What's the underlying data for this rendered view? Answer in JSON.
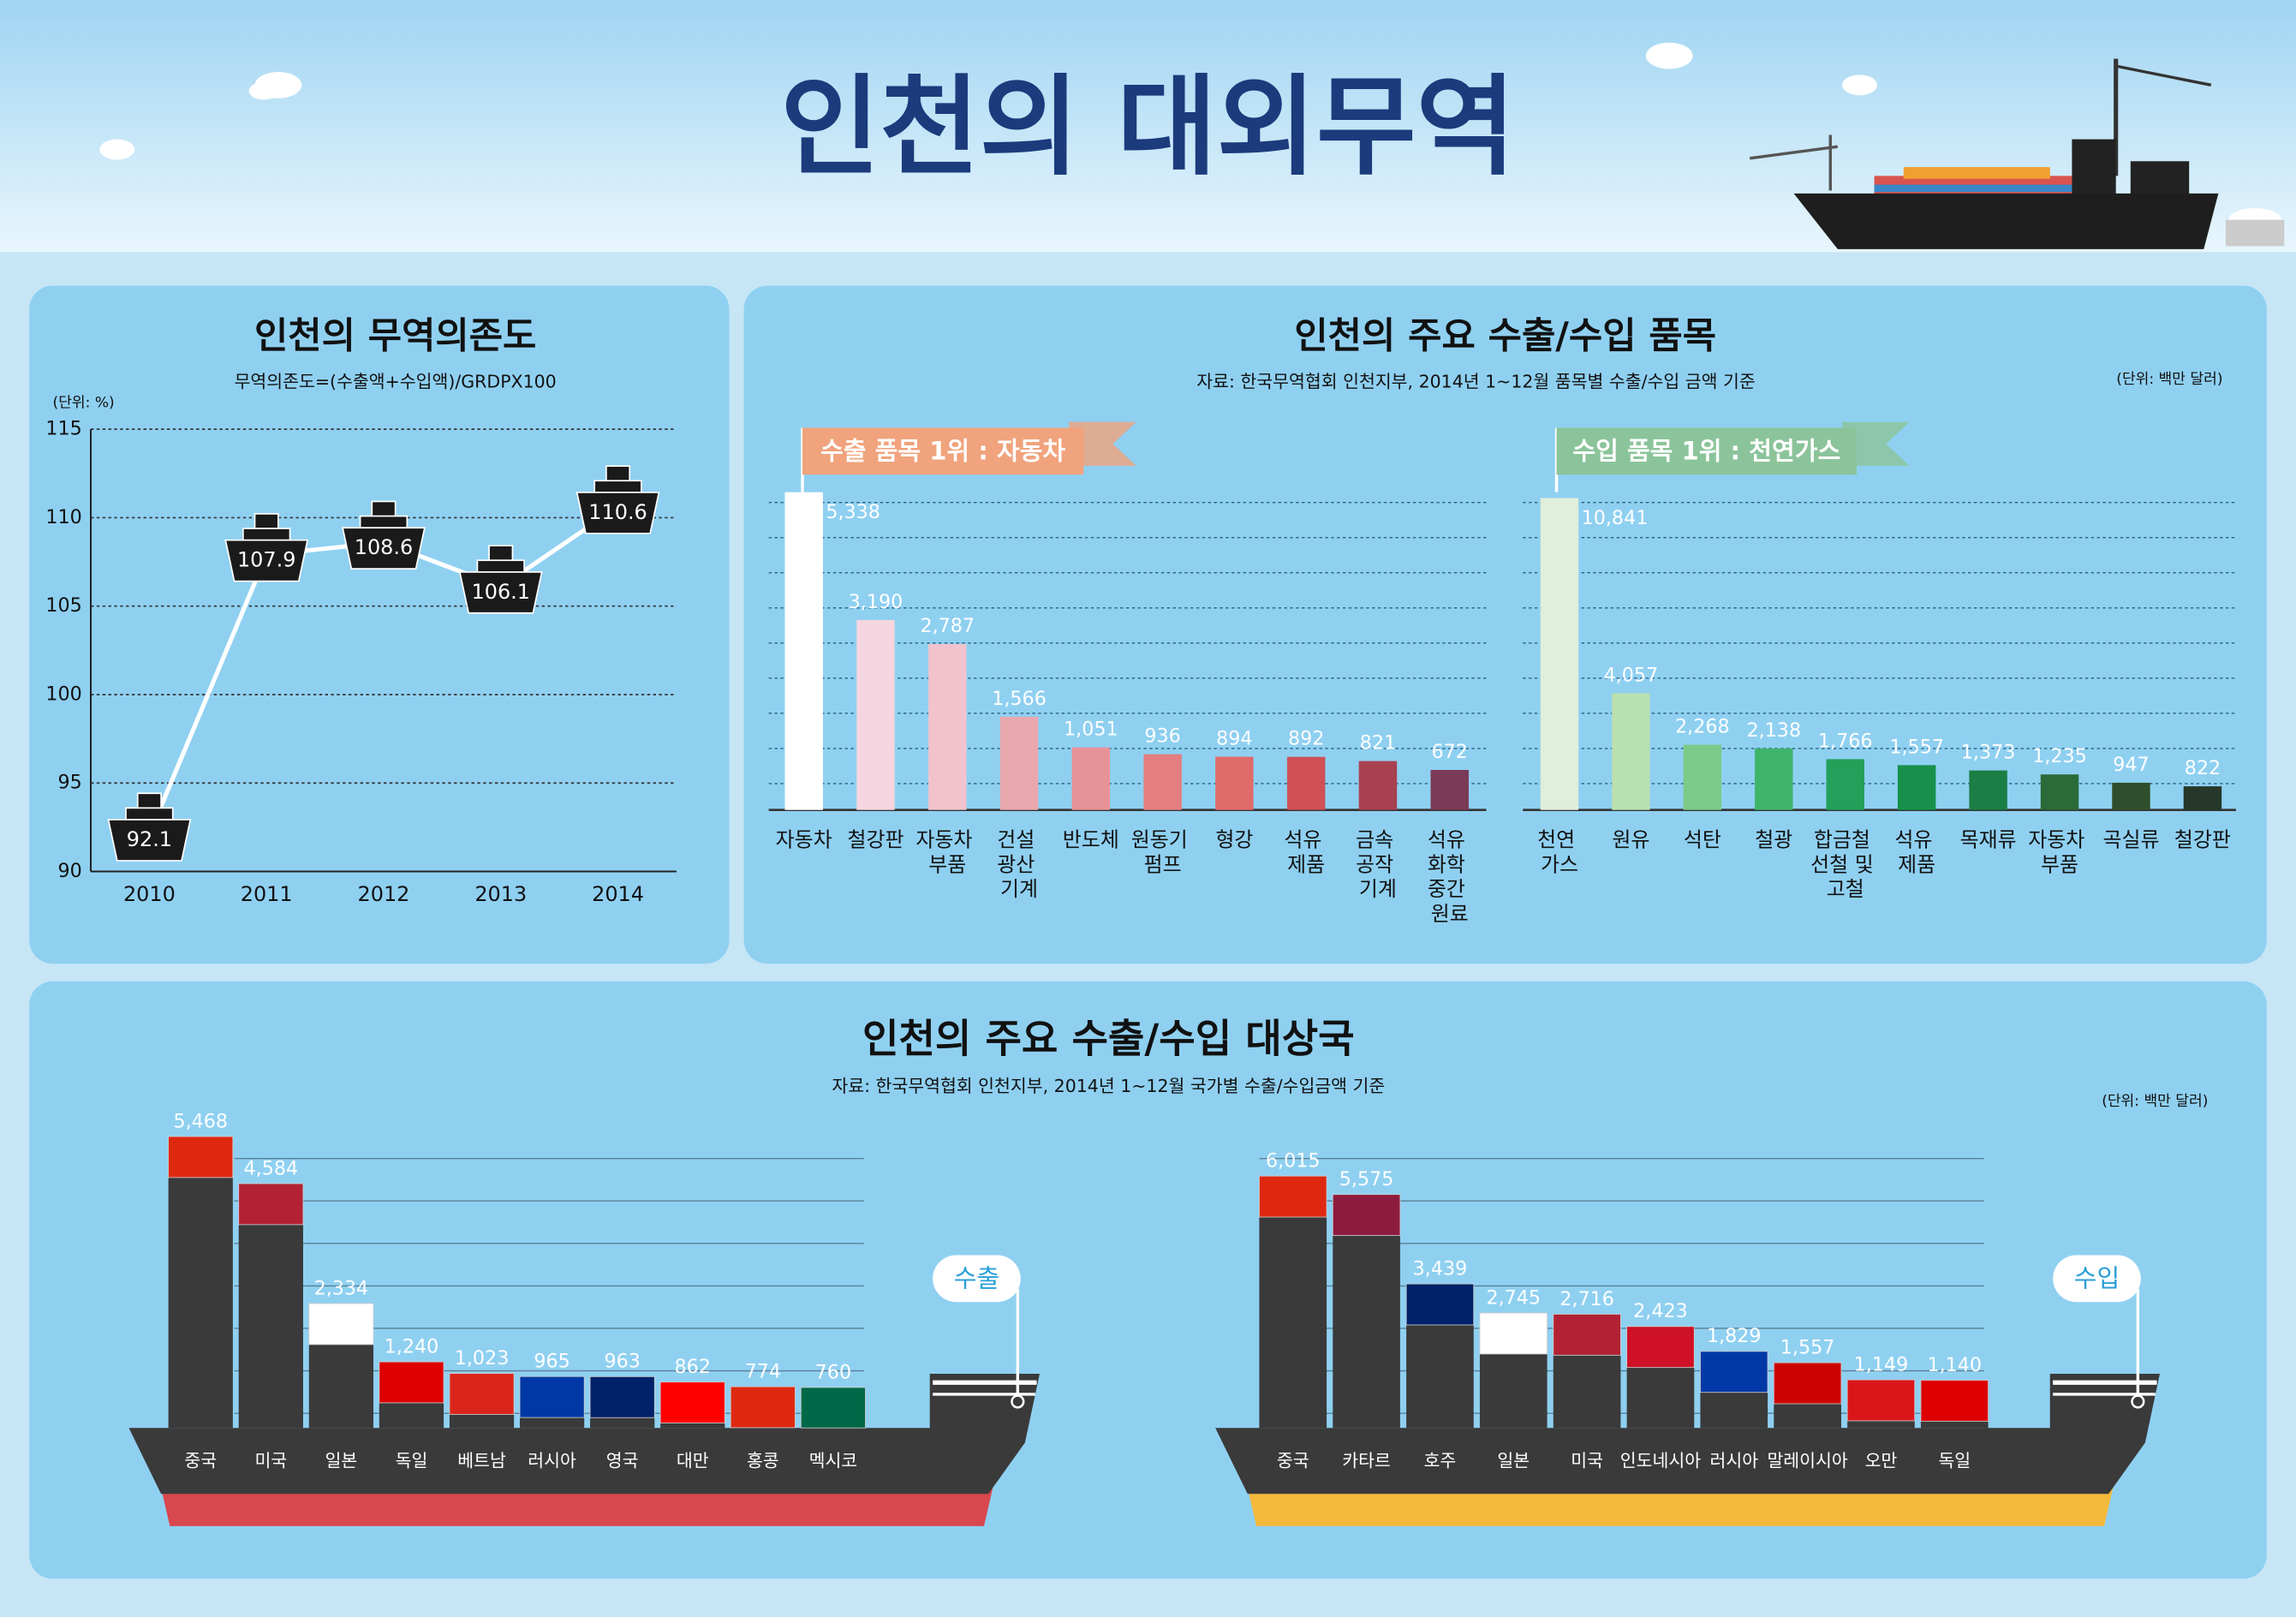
{
  "title": "인천의 대외무역",
  "chart_data": [
    {
      "type": "line",
      "title": "인천의 무역의존도",
      "subtitle": "무역의존도=(수출액+수입액)/GRDPX100",
      "unit": "(단위: %)",
      "categories": [
        "2010",
        "2011",
        "2012",
        "2013",
        "2014"
      ],
      "values": [
        92.1,
        107.9,
        108.6,
        106.1,
        110.6
      ],
      "ylim": [
        90,
        115
      ],
      "yticks": [
        90,
        95,
        100,
        105,
        110,
        115
      ],
      "grid": true,
      "color": "#ffffff"
    },
    {
      "type": "bar",
      "title": "인천의 주요 수출/수입 품목",
      "source": "자료: 한국무역협회 인천지부, 2014년 1~12월 품목별 수출/수입 금액 기준",
      "unit": "(단위: 백만 달러)",
      "banner": "수출 품목 1위 : 자동차",
      "banner_color": "#f0a37c",
      "categories": [
        "자동차",
        "철강판",
        "자동차\n부품",
        "건설\n광산\n기계",
        "반도체",
        "원동기\n펌프",
        "형강",
        "석유\n제품",
        "금속\n공작\n기계",
        "석유\n화학\n중간\n원료"
      ],
      "values": [
        5338,
        3190,
        2787,
        1566,
        1051,
        936,
        894,
        892,
        821,
        672
      ],
      "value_labels": [
        "5,338",
        "3,190",
        "2,787",
        "1,566",
        "1,051",
        "936",
        "894",
        "892",
        "821",
        "672"
      ],
      "colors": [
        "#ffffff",
        "#f5d5df",
        "#f0c3cd",
        "#e8a8ae",
        "#e79298",
        "#e57e80",
        "#e06b6b",
        "#cf5055",
        "#a84050",
        "#7b3a55"
      ]
    },
    {
      "type": "bar",
      "banner": "수입 품목 1위 : 천연가스",
      "banner_color": "#8bc49a",
      "categories": [
        "천연\n가스",
        "원유",
        "석탄",
        "철광",
        "합금철\n선철 및\n고철",
        "석유\n제품",
        "목재류",
        "자동차\n부품",
        "곡실류",
        "철강판"
      ],
      "values": [
        10841,
        4057,
        2268,
        2138,
        1766,
        1557,
        1373,
        1235,
        947,
        822
      ],
      "value_labels": [
        "10,841",
        "4,057",
        "2,268",
        "2,138",
        "1,766",
        "1,557",
        "1,373",
        "1,235",
        "947",
        "822"
      ],
      "colors": [
        "#e0efd9",
        "#b8e0b0",
        "#7dc98a",
        "#3fb46a",
        "#23a05a",
        "#16904a",
        "#1a7e45",
        "#2a6b38",
        "#2f4f2c",
        "#26382a"
      ]
    },
    {
      "type": "ship",
      "title": "인천의 주요 수출/수입 대상국",
      "source": "자료: 한국무역협회 인천지부, 2014년 1~12월 국가별 수출/수입금액 기준",
      "unit": "(단위: 백만 달러)",
      "label": "수출",
      "hull_color": "#d9474f",
      "categories": [
        "중국",
        "미국",
        "일본",
        "독일",
        "베트남",
        "러시아",
        "영국",
        "대만",
        "홍콩",
        "멕시코"
      ],
      "values": [
        5468,
        4584,
        2334,
        1240,
        1023,
        965,
        963,
        862,
        774,
        760
      ],
      "value_labels": [
        "5,468",
        "4,584",
        "2,334",
        "1,240",
        "1,023",
        "965",
        "963",
        "862",
        "774",
        "760"
      ],
      "colors": [
        "#de2910",
        "#b22234",
        "#ffffff",
        "#dd0000",
        "#da251d",
        "#0039a6",
        "#012169",
        "#fe0000",
        "#de2910",
        "#006847"
      ]
    },
    {
      "type": "ship",
      "label": "수입",
      "hull_color": "#f5b93b",
      "categories": [
        "중국",
        "카타르",
        "호주",
        "일본",
        "미국",
        "인도네시아",
        "러시아",
        "말레이시아",
        "오만",
        "독일"
      ],
      "values": [
        6015,
        5575,
        3439,
        2745,
        2716,
        2423,
        1829,
        1557,
        1149,
        1140
      ],
      "value_labels": [
        "6,015",
        "5,575",
        "3,439",
        "2,745",
        "2,716",
        "2,423",
        "1,829",
        "1,557",
        "1,149",
        "1,140"
      ],
      "colors": [
        "#de2910",
        "#8d1b3d",
        "#012169",
        "#ffffff",
        "#b22234",
        "#ce1126",
        "#0039a6",
        "#cc0001",
        "#db161b",
        "#dd0000"
      ]
    }
  ]
}
